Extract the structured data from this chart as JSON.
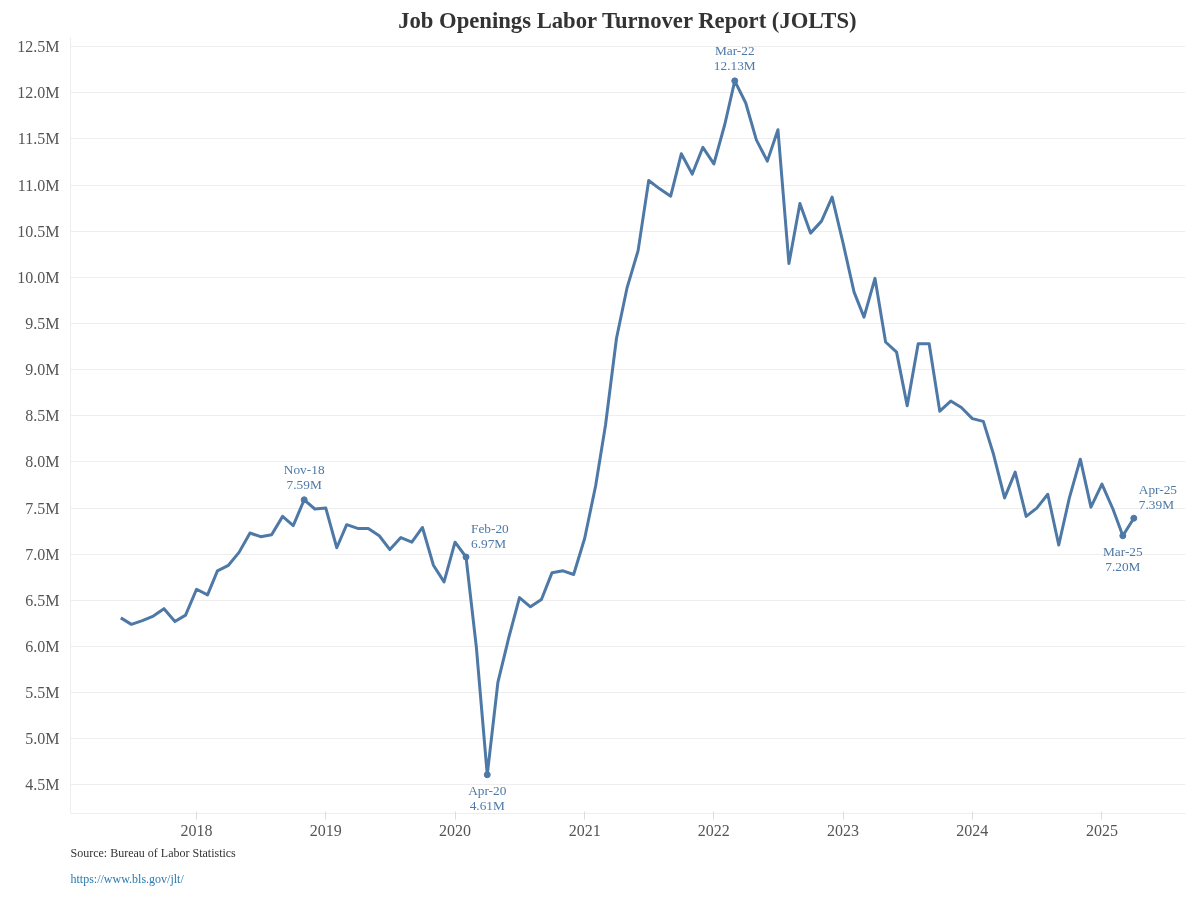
{
  "chart_data": {
    "type": "line",
    "title": "Job Openings Labor Turnover Report (JOLTS)",
    "x": [
      "2017-06",
      "2017-07",
      "2017-08",
      "2017-09",
      "2017-10",
      "2017-11",
      "2017-12",
      "2018-01",
      "2018-02",
      "2018-03",
      "2018-04",
      "2018-05",
      "2018-06",
      "2018-07",
      "2018-08",
      "2018-09",
      "2018-10",
      "2018-11",
      "2018-12",
      "2019-01",
      "2019-02",
      "2019-03",
      "2019-04",
      "2019-05",
      "2019-06",
      "2019-07",
      "2019-08",
      "2019-09",
      "2019-10",
      "2019-11",
      "2019-12",
      "2020-01",
      "2020-02",
      "2020-03",
      "2020-04",
      "2020-05",
      "2020-06",
      "2020-07",
      "2020-08",
      "2020-09",
      "2020-10",
      "2020-11",
      "2020-12",
      "2021-01",
      "2021-02",
      "2021-03",
      "2021-04",
      "2021-05",
      "2021-06",
      "2021-07",
      "2021-08",
      "2021-09",
      "2021-10",
      "2021-11",
      "2021-12",
      "2022-01",
      "2022-02",
      "2022-03",
      "2022-04",
      "2022-05",
      "2022-06",
      "2022-07",
      "2022-08",
      "2022-09",
      "2022-10",
      "2022-11",
      "2022-12",
      "2023-01",
      "2023-02",
      "2023-03",
      "2023-04",
      "2023-05",
      "2023-06",
      "2023-07",
      "2023-08",
      "2023-09",
      "2023-10",
      "2023-11",
      "2023-12",
      "2024-01",
      "2024-02",
      "2024-03",
      "2024-04",
      "2024-05",
      "2024-06",
      "2024-07",
      "2024-08",
      "2024-09",
      "2024-10",
      "2024-11",
      "2024-12",
      "2025-01",
      "2025-02",
      "2025-03",
      "2025-04"
    ],
    "series": [
      {
        "color": "#4e79a7",
        "values": [
          6.31,
          6.24,
          6.28,
          6.33,
          6.41,
          6.27,
          6.34,
          6.62,
          6.56,
          6.82,
          6.88,
          7.02,
          7.23,
          7.19,
          7.21,
          7.41,
          7.31,
          7.59,
          7.49,
          7.5,
          7.07,
          7.32,
          7.28,
          7.28,
          7.2,
          7.05,
          7.18,
          7.13,
          7.29,
          6.88,
          6.7,
          7.13,
          6.97,
          6.0,
          4.61,
          5.61,
          6.1,
          6.53,
          6.43,
          6.51,
          6.8,
          6.82,
          6.78,
          7.17,
          7.74,
          8.4,
          9.34,
          9.89,
          10.29,
          11.05,
          10.96,
          10.88,
          11.34,
          11.12,
          11.41,
          11.23,
          11.66,
          12.13,
          11.89,
          11.49,
          11.26,
          11.6,
          10.15,
          10.8,
          10.48,
          10.61,
          10.87,
          10.37,
          9.84,
          9.57,
          9.99,
          9.3,
          9.19,
          8.61,
          9.28,
          9.28,
          8.55,
          8.66,
          8.59,
          8.47,
          8.44,
          8.08,
          7.61,
          7.89,
          7.41,
          7.5,
          7.65,
          7.1,
          7.61,
          8.03,
          7.51,
          7.76,
          7.49,
          7.2,
          7.39
        ]
      }
    ],
    "xlim": [
      "2017-01-10",
      "2025-08-25"
    ],
    "xticks": [
      {
        "value": "2018",
        "label": "2018"
      },
      {
        "value": "2019",
        "label": "2019"
      },
      {
        "value": "2020",
        "label": "2020"
      },
      {
        "value": "2021",
        "label": "2021"
      },
      {
        "value": "2022",
        "label": "2022"
      },
      {
        "value": "2023",
        "label": "2023"
      },
      {
        "value": "2024",
        "label": "2024"
      },
      {
        "value": "2025",
        "label": "2025"
      }
    ],
    "ylim": [
      4.19,
      12.6
    ],
    "yticks": [
      {
        "value": 4.5,
        "label": "4.5M"
      },
      {
        "value": 5.0,
        "label": "5.0M"
      },
      {
        "value": 5.5,
        "label": "5.5M"
      },
      {
        "value": 6.0,
        "label": "6.0M"
      },
      {
        "value": 6.5,
        "label": "6.5M"
      },
      {
        "value": 7.0,
        "label": "7.0M"
      },
      {
        "value": 7.5,
        "label": "7.5M"
      },
      {
        "value": 8.0,
        "label": "8.0M"
      },
      {
        "value": 8.5,
        "label": "8.5M"
      },
      {
        "value": 9.0,
        "label": "9.0M"
      },
      {
        "value": 9.5,
        "label": "9.5M"
      },
      {
        "value": 10.0,
        "label": "10.0M"
      },
      {
        "value": 10.5,
        "label": "10.5M"
      },
      {
        "value": 11.0,
        "label": "11.0M"
      },
      {
        "value": 11.5,
        "label": "11.5M"
      },
      {
        "value": 12.0,
        "label": "12.0M"
      },
      {
        "value": 12.5,
        "label": "12.5M"
      }
    ],
    "grid": "y",
    "marker": "none",
    "line_style": "solid",
    "annotations": [
      {
        "text": "Nov-18\n7.59M",
        "x": "2018-11",
        "y": 7.59
      },
      {
        "text": "Feb-20\n6.97M",
        "x": "2020-02",
        "y": 6.97
      },
      {
        "text": "Apr-20\n4.61M",
        "x": "2020-04",
        "y": 4.61
      },
      {
        "text": "Mar-22\n12.13M",
        "x": "2022-03",
        "y": 12.13
      },
      {
        "text": "Mar-25\n7.20M",
        "x": "2025-03",
        "y": 7.2
      },
      {
        "text": "Apr-25\n7.39M",
        "x": "2025-04",
        "y": 7.39
      },
      "Source: Bureau of Labor Statistics",
      "https://www.bls.gov/jlt/"
    ]
  }
}
